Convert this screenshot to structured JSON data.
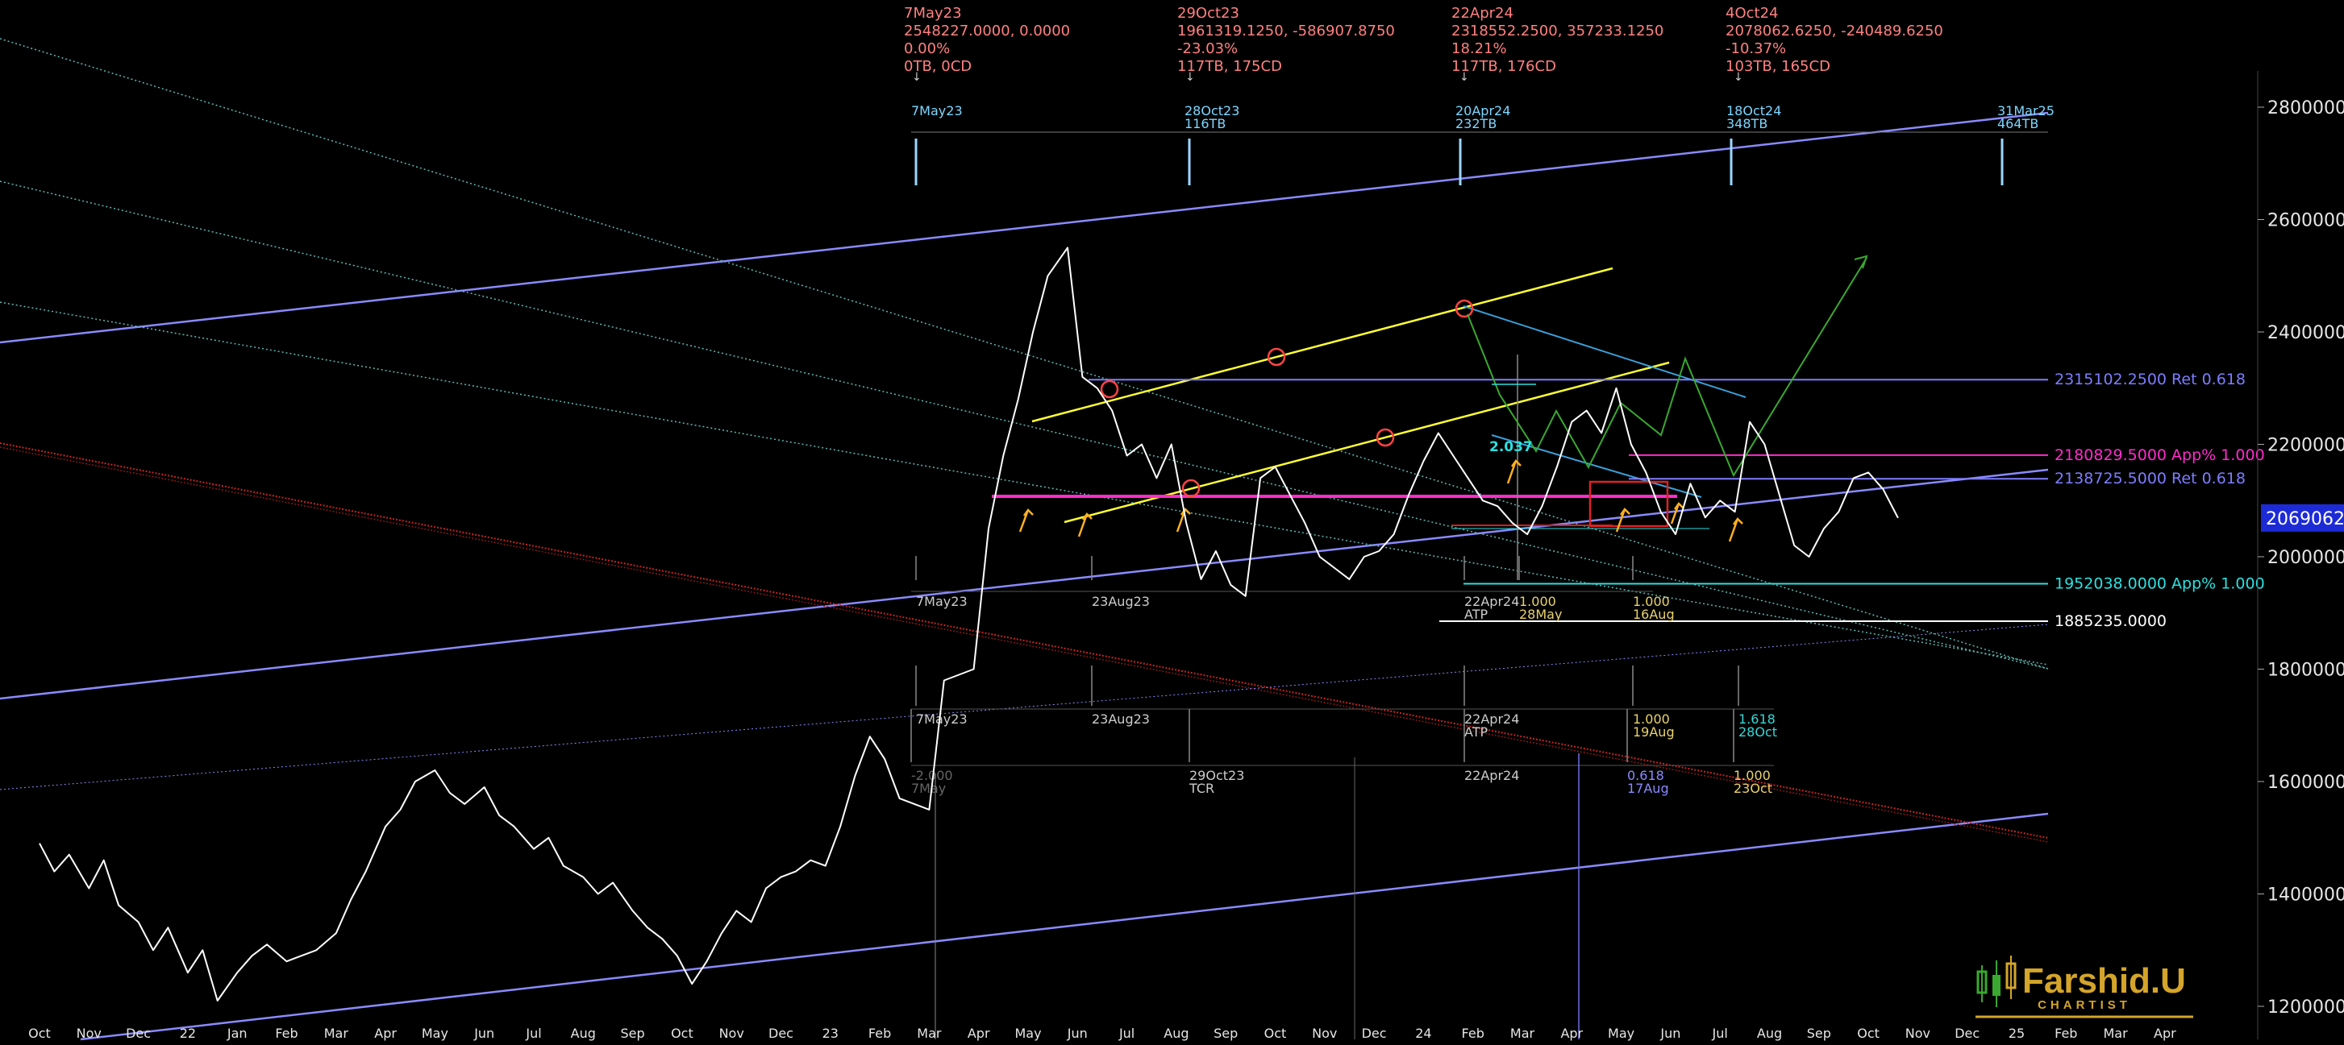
{
  "chart_data": {
    "type": "line",
    "title": "",
    "xlabel": "",
    "ylabel": "",
    "ylim": [
      1180000,
      2870000
    ],
    "time_axis_labels": [
      "Oct",
      "Nov",
      "Dec",
      "22",
      "Jan",
      "Feb",
      "Mar",
      "Apr",
      "May",
      "Jun",
      "Jul",
      "Aug",
      "Sep",
      "Oct",
      "Nov",
      "Dec",
      "23",
      "Feb",
      "Mar",
      "Apr",
      "May",
      "Jun",
      "Jul",
      "Aug",
      "Sep",
      "Oct",
      "Nov",
      "Dec",
      "24",
      "Feb",
      "Mar",
      "Apr",
      "May",
      "Jun",
      "Jul",
      "Aug",
      "Sep",
      "Oct",
      "Nov",
      "Dec",
      "25",
      "Feb",
      "Mar",
      "Apr"
    ],
    "price_axis_labels": [
      "2800000.0",
      "2600000.0",
      "2400000.0",
      "2200000.0",
      "2000000.0",
      "1800000.0",
      "1600000.0",
      "1400000.0",
      "1200000.0"
    ],
    "current_price_label": "2069062.",
    "series": [
      {
        "values": [
          [
            0.0,
            1490000
          ],
          [
            0.3,
            1440000
          ],
          [
            0.6,
            1470000
          ],
          [
            1.0,
            1410000
          ],
          [
            1.3,
            1460000
          ],
          [
            1.6,
            1380000
          ],
          [
            2.0,
            1350000
          ],
          [
            2.3,
            1300000
          ],
          [
            2.6,
            1340000
          ],
          [
            3.0,
            1260000
          ],
          [
            3.3,
            1300000
          ],
          [
            3.6,
            1210000
          ],
          [
            4.0,
            1260000
          ],
          [
            4.3,
            1290000
          ],
          [
            4.6,
            1310000
          ],
          [
            5.0,
            1280000
          ],
          [
            5.3,
            1290000
          ],
          [
            5.6,
            1300000
          ],
          [
            6.0,
            1330000
          ],
          [
            6.3,
            1390000
          ],
          [
            6.6,
            1440000
          ],
          [
            7.0,
            1520000
          ],
          [
            7.3,
            1550000
          ],
          [
            7.6,
            1600000
          ],
          [
            8.0,
            1620000
          ],
          [
            8.3,
            1580000
          ],
          [
            8.6,
            1560000
          ],
          [
            9.0,
            1590000
          ],
          [
            9.3,
            1540000
          ],
          [
            9.6,
            1520000
          ],
          [
            10.0,
            1480000
          ],
          [
            10.3,
            1500000
          ],
          [
            10.6,
            1450000
          ],
          [
            11.0,
            1430000
          ],
          [
            11.3,
            1400000
          ],
          [
            11.6,
            1420000
          ],
          [
            12.0,
            1370000
          ],
          [
            12.3,
            1340000
          ],
          [
            12.6,
            1320000
          ],
          [
            12.9,
            1290000
          ],
          [
            13.2,
            1240000
          ],
          [
            13.5,
            1280000
          ],
          [
            13.8,
            1330000
          ],
          [
            14.1,
            1370000
          ],
          [
            14.4,
            1350000
          ],
          [
            14.7,
            1410000
          ],
          [
            15.0,
            1430000
          ],
          [
            15.3,
            1440000
          ],
          [
            15.6,
            1460000
          ],
          [
            15.9,
            1450000
          ],
          [
            16.2,
            1520000
          ],
          [
            16.5,
            1610000
          ],
          [
            16.8,
            1680000
          ],
          [
            17.1,
            1640000
          ],
          [
            17.4,
            1570000
          ],
          [
            17.7,
            1560000
          ],
          [
            18.0,
            1550000
          ],
          [
            18.3,
            1780000
          ],
          [
            18.6,
            1790000
          ],
          [
            18.9,
            1800000
          ],
          [
            19.2,
            2050000
          ],
          [
            19.5,
            2180000
          ],
          [
            19.8,
            2280000
          ],
          [
            20.1,
            2400000
          ],
          [
            20.4,
            2500000
          ],
          [
            20.8,
            2550000
          ],
          [
            21.1,
            2320000
          ],
          [
            21.4,
            2300000
          ],
          [
            21.7,
            2260000
          ],
          [
            22.0,
            2180000
          ],
          [
            22.3,
            2200000
          ],
          [
            22.6,
            2140000
          ],
          [
            22.9,
            2200000
          ],
          [
            23.2,
            2060000
          ],
          [
            23.5,
            1960000
          ],
          [
            23.8,
            2010000
          ],
          [
            24.1,
            1950000
          ],
          [
            24.4,
            1930000
          ],
          [
            24.7,
            2140000
          ],
          [
            25.0,
            2160000
          ],
          [
            25.3,
            2110000
          ],
          [
            25.6,
            2060000
          ],
          [
            25.9,
            2000000
          ],
          [
            26.2,
            1980000
          ],
          [
            26.5,
            1960000
          ],
          [
            26.8,
            2000000
          ],
          [
            27.1,
            2010000
          ],
          [
            27.4,
            2040000
          ],
          [
            27.7,
            2110000
          ],
          [
            28.0,
            2170000
          ],
          [
            28.3,
            2220000
          ],
          [
            28.6,
            2180000
          ],
          [
            28.9,
            2140000
          ],
          [
            29.2,
            2100000
          ],
          [
            29.5,
            2090000
          ],
          [
            29.8,
            2060000
          ],
          [
            30.1,
            2040000
          ],
          [
            30.4,
            2090000
          ],
          [
            30.7,
            2160000
          ],
          [
            31.0,
            2240000
          ],
          [
            31.3,
            2260000
          ],
          [
            31.6,
            2220000
          ],
          [
            31.9,
            2300000
          ],
          [
            32.2,
            2200000
          ],
          [
            32.5,
            2150000
          ],
          [
            32.8,
            2080000
          ],
          [
            33.1,
            2040000
          ],
          [
            33.4,
            2130000
          ],
          [
            33.7,
            2070000
          ],
          [
            34.0,
            2100000
          ],
          [
            34.3,
            2080000
          ],
          [
            34.6,
            2240000
          ],
          [
            34.9,
            2200000
          ],
          [
            35.2,
            2110000
          ],
          [
            35.5,
            2020000
          ],
          [
            35.8,
            2000000
          ],
          [
            36.1,
            2050000
          ],
          [
            36.4,
            2080000
          ],
          [
            36.7,
            2140000
          ],
          [
            37.0,
            2150000
          ],
          [
            37.3,
            2120000
          ],
          [
            37.6,
            2069062
          ]
        ]
      }
    ],
    "horizontal_levels": [
      {
        "value": 2315102.25,
        "label": "2315102.2500 Ret 0.618",
        "color": "#7d7dff"
      },
      {
        "value": 2180829.5,
        "label": "2180829.5000 App% 1.000",
        "color": "#ff2dcc"
      },
      {
        "value": 2138725.5,
        "label": "2138725.5000 Ret 0.618",
        "color": "#7d7dff"
      },
      {
        "value": 1952038.0,
        "label": "1952038.0000 App% 1.000",
        "color": "#2de0e0"
      },
      {
        "value": 1885235.0,
        "label": "1885235.0000",
        "color": "#ffffff"
      }
    ],
    "top_stats": [
      {
        "date": "7May23",
        "values": "2548227.0000, 0.0000",
        "pct": "0.00%",
        "tb": "0TB, 0CD"
      },
      {
        "date": "29Oct23",
        "values": "1961319.1250, -586907.8750",
        "pct": "-23.03%",
        "tb": "117TB, 175CD"
      },
      {
        "date": "22Apr24",
        "values": "2318552.2500, 357233.1250",
        "pct": "18.21%",
        "tb": "117TB, 176CD"
      },
      {
        "date": "4Oct24",
        "values": "2078062.6250, -240489.6250",
        "pct": "-10.37%",
        "tb": "103TB, 165CD"
      }
    ],
    "cycle_markers": [
      {
        "date": "7May23",
        "tb": ""
      },
      {
        "date": "28Oct23",
        "tb": "116TB"
      },
      {
        "date": "20Apr24",
        "tb": "232TB"
      },
      {
        "date": "18Oct24",
        "tb": "348TB"
      },
      {
        "date": "31Mar25",
        "tb": "464TB"
      }
    ],
    "time_ratio_row1": [
      {
        "label": "7May23",
        "sub": ""
      },
      {
        "label": "23Aug23",
        "sub": ""
      },
      {
        "label": "22Apr24",
        "sub": "ATP"
      },
      {
        "label": "1.000",
        "sub": "28May"
      },
      {
        "label": "1.000",
        "sub": "16Aug"
      }
    ],
    "time_ratio_row2": [
      {
        "label": "7May23",
        "sub": ""
      },
      {
        "label": "23Aug23",
        "sub": ""
      },
      {
        "label": "22Apr24",
        "sub": "ATP"
      },
      {
        "label": "1.000",
        "sub": "19Aug"
      },
      {
        "label": "1.618",
        "sub": "28Oct"
      }
    ],
    "time_ratio_row3": [
      {
        "label": "-2.000",
        "sub": "7May"
      },
      {
        "label": "29Oct23",
        "sub": "TCR"
      },
      {
        "label": "22Apr24",
        "sub": ""
      },
      {
        "label": "0.618",
        "sub": "17Aug"
      },
      {
        "label": "1.000",
        "sub": "23Oct"
      }
    ],
    "annotation_ratio": "2.037"
  },
  "brand": {
    "name": "Farshid.U",
    "tagline": "CHARTIST"
  },
  "colors": {
    "background": "#000000",
    "price": "#ffffff",
    "channel": "#8a8aff",
    "yellow": "#ffff33",
    "magenta": "#ff2dcc",
    "cyan": "#2de0e0",
    "red": "#cc2222",
    "teal_dotted": "#5fb8b0",
    "stats": "#ff8080",
    "gold": "#d4a52a",
    "green": "#3aa830",
    "current_price_box": "#1d2bd6"
  }
}
